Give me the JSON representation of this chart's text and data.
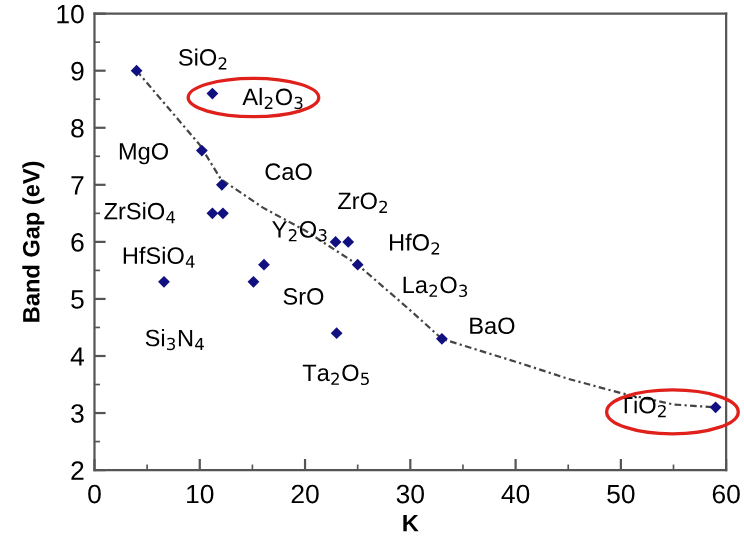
{
  "chart_data": {
    "type": "scatter",
    "xlabel": "K",
    "ylabel": "Band Gap (eV)",
    "xlim": [
      0,
      60
    ],
    "xticks": [
      0,
      10,
      20,
      30,
      40,
      50,
      60
    ],
    "ylim": [
      2,
      10
    ],
    "yticks": [
      2,
      3,
      4,
      5,
      6,
      7,
      8,
      9,
      10
    ],
    "grid": false,
    "legend": false,
    "series": [
      {
        "color": "#101080",
        "marker": "diamond",
        "x": [
          4.0,
          11.2,
          10.2,
          12.1,
          11.2,
          12.2,
          22.9,
          24.1,
          16.1,
          25.0,
          6.6,
          15.1,
          23.0,
          33.0,
          59.0
        ],
        "values": [
          9.0,
          8.6,
          7.6,
          7.0,
          6.5,
          6.5,
          6.0,
          6.0,
          5.6,
          5.6,
          5.3,
          5.3,
          4.4,
          4.3,
          3.1
        ]
      },
      {
        "type": "line",
        "color": "#444444",
        "line_style": "dotted",
        "x": [
          4,
          10,
          12,
          16,
          20,
          25,
          30,
          33,
          40,
          45,
          50,
          55,
          59
        ],
        "values": [
          9.0,
          7.7,
          7.1,
          6.6,
          6.2,
          5.6,
          4.8,
          4.3,
          3.9,
          3.6,
          3.35,
          3.15,
          3.1
        ]
      }
    ],
    "annotations": [
      {
        "text": "SiO$_{2}$",
        "x": 4.0,
        "y": 9.0
      },
      {
        "text": "Al$_{2}$O$_{3}$",
        "x": 11.2,
        "y": 8.6
      },
      {
        "text": "MgO",
        "x": 10.2,
        "y": 7.6
      },
      {
        "text": "CaO",
        "x": 12.1,
        "y": 7.0
      },
      {
        "text": "ZrSiO$_{4}$",
        "x": 11.2,
        "y": 6.5
      },
      {
        "text": "HfSiO$_{4}$",
        "x": 12.2,
        "y": 6.5
      },
      {
        "text": "ZrO$_{2}$",
        "x": 22.9,
        "y": 6.0
      },
      {
        "text": "HfO$_{2}$",
        "x": 24.1,
        "y": 6.0
      },
      {
        "text": "Y$_{2}$O$_{3}$",
        "x": 16.1,
        "y": 5.6
      },
      {
        "text": "La$_{2}$O$_{3}$",
        "x": 25.0,
        "y": 5.6
      },
      {
        "text": "Si$_{3}$N$_{4}$",
        "x": 6.6,
        "y": 5.3
      },
      {
        "text": "SrO",
        "x": 15.1,
        "y": 5.3
      },
      {
        "text": "Ta$_{2}$O$_{5}$",
        "x": 23.0,
        "y": 4.4
      },
      {
        "text": "BaO",
        "x": 33.0,
        "y": 4.3
      },
      {
        "text": "TiO$_{2}$",
        "x": 59.0,
        "y": 3.1
      }
    ]
  }
}
